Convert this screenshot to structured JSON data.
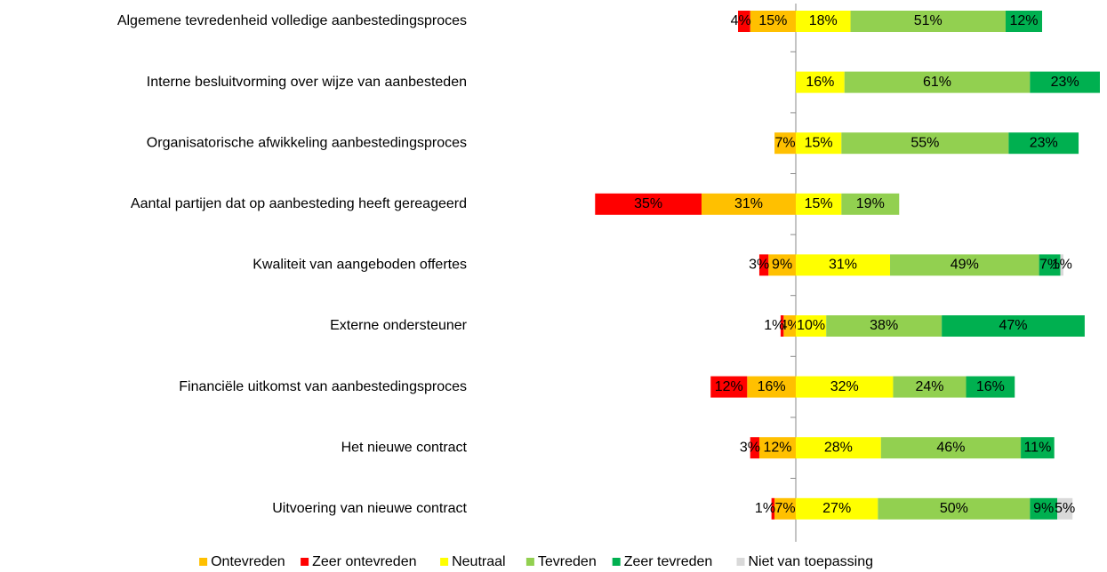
{
  "chart_data": {
    "type": "diverging-bar",
    "categories": [
      "Algemene tevredenheid volledige aanbestedingsproces",
      "Interne besluitvorming over wijze van aanbesteden",
      "Organisatorische afwikkeling aanbestedingsproces",
      "Aantal partijen dat op aanbesteding heeft gereageerd",
      "Kwaliteit van aangeboden  offertes",
      "Externe ondersteuner",
      "Financiële uitkomst van aanbestedingsproces",
      "Het nieuwe contract",
      "Uitvoering van nieuwe contract"
    ],
    "series": [
      {
        "name": "Ontevreden",
        "color": "#FFC000",
        "values": [
          15,
          null,
          7,
          31,
          9,
          4,
          16,
          12,
          7
        ],
        "value_labels": [
          "15%",
          null,
          "7%",
          "31%",
          "9%",
          "4%",
          "16%",
          "12%",
          "7%"
        ]
      },
      {
        "name": "Zeer ontevreden",
        "color": "#FF0000",
        "values": [
          4,
          null,
          null,
          35,
          3,
          1,
          12,
          3,
          1
        ],
        "value_labels": [
          "4%",
          null,
          null,
          "35%",
          "3%",
          "1%",
          "12%",
          "3%",
          "1%"
        ]
      },
      {
        "name": "Neutraal",
        "color": "#FFFF00",
        "values": [
          18,
          16,
          15,
          15,
          31,
          10,
          32,
          28,
          27
        ],
        "value_labels": [
          "18%",
          "16%",
          "15%",
          "15%",
          "31%",
          "10%",
          "32%",
          "28%",
          "27%"
        ]
      },
      {
        "name": "Tevreden",
        "color": "#92D050",
        "values": [
          51,
          61,
          55,
          19,
          49,
          38,
          24,
          46,
          50
        ],
        "value_labels": [
          "51%",
          "61%",
          "55%",
          "19%",
          "49%",
          "38%",
          "24%",
          "46%",
          "50%"
        ]
      },
      {
        "name": "Zeer tevreden",
        "color": "#00B050",
        "values": [
          12,
          23,
          23,
          null,
          7,
          47,
          16,
          11,
          9
        ],
        "value_labels": [
          "12%",
          "23%",
          "23%",
          null,
          "7%",
          "47%",
          "16%",
          "11%",
          "9%"
        ]
      },
      {
        "name": "Niet van toepassing",
        "color": "#D9D9D9",
        "values": [
          null,
          null,
          null,
          null,
          1,
          null,
          null,
          null,
          5
        ],
        "value_labels": [
          null,
          null,
          null,
          null,
          "1%",
          null,
          null,
          null,
          "5%"
        ]
      }
    ]
  }
}
